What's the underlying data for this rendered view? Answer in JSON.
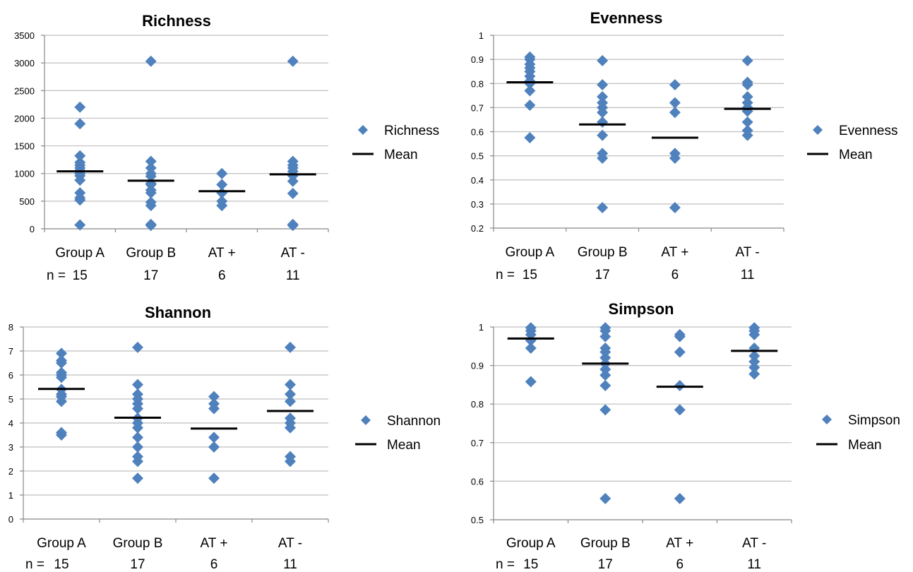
{
  "chart_data": [
    {
      "type": "scatter",
      "title": "Richness",
      "categories": [
        "Group A",
        "Group B",
        "AT +",
        "AT -"
      ],
      "n_label": "n =",
      "n": [
        "15",
        "17",
        "6",
        "11"
      ],
      "ylim": [
        0,
        3500
      ],
      "yticks": [
        0,
        500,
        1000,
        1500,
        2000,
        2500,
        3000,
        3500
      ],
      "grid": true,
      "legend_position": "right",
      "series": [
        {
          "name": "Richness",
          "values": [
            [
              70,
              520,
              560,
              650,
              880,
              960,
              1000,
              1050,
              1100,
              1150,
              1200,
              1320,
              1900,
              2200
            ],
            [
              60,
              80,
              420,
              480,
              650,
              700,
              800,
              820,
              950,
              1000,
              1100,
              1220,
              3030
            ],
            [
              420,
              500,
              650,
              800,
              1000
            ],
            [
              60,
              80,
              640,
              860,
              960,
              1040,
              1100,
              1150,
              1220,
              3030
            ]
          ]
        },
        {
          "name": "Mean",
          "values": [
            1040,
            870,
            680,
            985
          ]
        }
      ]
    },
    {
      "type": "scatter",
      "title": "Evenness",
      "categories": [
        "Group A",
        "Group B",
        "AT +",
        "AT -"
      ],
      "n_label": "n =",
      "n": [
        "15",
        "17",
        "6",
        "11"
      ],
      "ylim": [
        0.2,
        1
      ],
      "yticks": [
        0.2,
        0.3,
        0.4,
        0.5,
        0.6,
        0.7,
        0.8,
        0.9,
        1
      ],
      "grid": true,
      "legend_position": "right",
      "series": [
        {
          "name": "Evenness",
          "values": [
            [
              0.575,
              0.71,
              0.77,
              0.8,
              0.81,
              0.83,
              0.85,
              0.865,
              0.88,
              0.9,
              0.91
            ],
            [
              0.285,
              0.49,
              0.51,
              0.585,
              0.64,
              0.68,
              0.7,
              0.72,
              0.745,
              0.795,
              0.895
            ],
            [
              0.285,
              0.49,
              0.51,
              0.68,
              0.72,
              0.795
            ],
            [
              0.585,
              0.605,
              0.64,
              0.685,
              0.7,
              0.72,
              0.745,
              0.795,
              0.805,
              0.895
            ]
          ]
        },
        {
          "name": "Mean",
          "values": [
            0.805,
            0.63,
            0.575,
            0.695
          ]
        }
      ]
    },
    {
      "type": "scatter",
      "title": "Shannon",
      "categories": [
        "Group A",
        "Group B",
        "AT +",
        "AT -"
      ],
      "n_label": "n =",
      "n": [
        "15",
        "17",
        "6",
        "11"
      ],
      "ylim": [
        0,
        8
      ],
      "yticks": [
        0,
        1,
        2,
        3,
        4,
        5,
        6,
        7,
        8
      ],
      "grid": true,
      "legend_position": "right",
      "series": [
        {
          "name": "Shannon",
          "values": [
            [
              3.5,
              3.6,
              4.9,
              5.1,
              5.2,
              5.4,
              5.9,
              6.0,
              6.1,
              6.5,
              6.6,
              6.9
            ],
            [
              1.7,
              2.4,
              2.6,
              3.0,
              3.4,
              3.8,
              4.0,
              4.2,
              4.6,
              4.8,
              5.0,
              5.2,
              5.6,
              7.15
            ],
            [
              1.7,
              3.0,
              3.4,
              4.6,
              4.8,
              5.1
            ],
            [
              2.4,
              2.6,
              3.8,
              4.0,
              4.2,
              4.9,
              5.2,
              5.6,
              7.15
            ]
          ]
        },
        {
          "name": "Mean",
          "values": [
            5.42,
            4.22,
            3.77,
            4.5
          ]
        }
      ]
    },
    {
      "type": "scatter",
      "title": "Simpson",
      "categories": [
        "Group A",
        "Group B",
        "AT +",
        "AT -"
      ],
      "n_label": "n =",
      "n": [
        "15",
        "17",
        "6",
        "11"
      ],
      "ylim": [
        0.5,
        1
      ],
      "yticks": [
        0.5,
        0.6,
        0.7,
        0.8,
        0.9,
        1
      ],
      "grid": true,
      "legend_position": "right",
      "series": [
        {
          "name": "Simpson",
          "values": [
            [
              0.858,
              0.945,
              0.965,
              0.98,
              0.99,
              0.998
            ],
            [
              0.555,
              0.785,
              0.848,
              0.875,
              0.89,
              0.905,
              0.92,
              0.935,
              0.945,
              0.975,
              0.99,
              0.998
            ],
            [
              0.555,
              0.785,
              0.848,
              0.935,
              0.975,
              0.98
            ],
            [
              0.878,
              0.895,
              0.91,
              0.925,
              0.945,
              0.98,
              0.99,
              0.998
            ]
          ]
        },
        {
          "name": "Mean",
          "values": [
            0.97,
            0.905,
            0.845,
            0.938
          ]
        }
      ]
    }
  ],
  "colors": {
    "marker": "#4f81bd",
    "grid": "#bfbfbf",
    "mean": "#000000",
    "axis": "#888888"
  }
}
